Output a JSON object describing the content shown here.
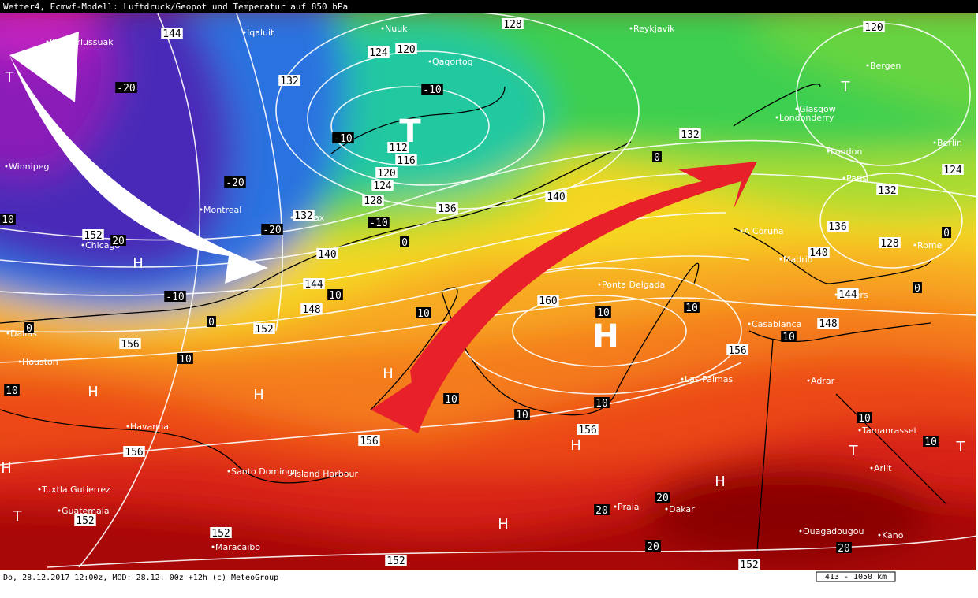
{
  "header": {
    "title": "Wetter4, Ecmwf-Modell: Luftdruck/Geopot und Temperatur auf 850 hPa"
  },
  "footer": {
    "caption": "Do, 28.12.2017 12:00z, MOD: 28.12. 00z +12h (c) MeteoGroup",
    "scale": "413 - 1050 km"
  },
  "cities": [
    "Kangerlussuak",
    "Iqaluit",
    "Nuuk",
    "Qaqortoq",
    "Reykjavik",
    "Bergen",
    "Glasgow",
    "Londonderry",
    "Berlin",
    "London",
    "Paris",
    "Winnipeg",
    "Montreal",
    "Halifax",
    "Chicago",
    "A Coruna",
    "Madrid",
    "Rome",
    "Ponta Delgada",
    "Algiers",
    "Casablanca",
    "Dallas",
    "Houston",
    "Las Palmas",
    "Adrar",
    "Havanna",
    "Tamanrasset",
    "Santo Domingo",
    "Island Harbour",
    "Arlit",
    "Tuxtla Gutierrez",
    "Guatemala",
    "Praia",
    "Dakar",
    "Maracaibo",
    "Ouagadougou",
    "Kano"
  ],
  "geopotential_labels": [
    144,
    128,
    120,
    124,
    120,
    132,
    112,
    116,
    120,
    124,
    128,
    132,
    136,
    140,
    132,
    124,
    132,
    136,
    140,
    128,
    140,
    152,
    144,
    148,
    152,
    156,
    160,
    156,
    148,
    144,
    156,
    156,
    156,
    152,
    152,
    152,
    152
  ],
  "temperature_labels": [
    -20,
    -10,
    -10,
    -20,
    -10,
    -20,
    -10,
    0,
    0,
    10,
    10,
    10,
    10,
    10,
    10,
    10,
    10,
    10,
    10,
    10,
    10,
    20,
    20,
    20,
    20,
    20,
    0,
    0,
    0,
    10,
    0
  ],
  "pressure_centers": [
    "T",
    "T",
    "T",
    "H",
    "H",
    "H",
    "H",
    "H",
    "H",
    "H",
    "H",
    "T",
    "T",
    "H",
    "T"
  ]
}
